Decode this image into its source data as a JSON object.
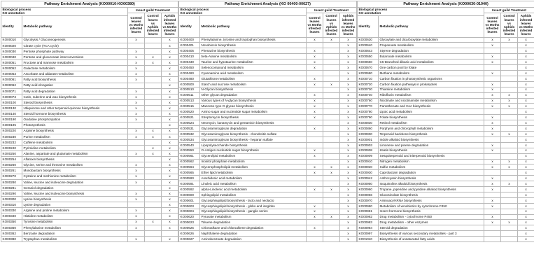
{
  "panels": [
    {
      "title": "Pathway Enrichment Analysis (KO00010-KO00380)",
      "header_bp": "Biological process",
      "header_ko": "KO annotation",
      "header_treatment": "Insect guild Treatment",
      "header_identity": "Identity",
      "header_pathway": "Metabolic pathway",
      "columns": [
        "Control leaves vs Moths infested leaves",
        "Control leaves vs Aphids infested leaves",
        "Aphids infested leaves vs Moths infested leaves"
      ],
      "rows": [
        {
          "id": "KO00010",
          "name": "Glycolysis / Gluconeogenesis",
          "c1": "x",
          "c2": "",
          "c3": "x"
        },
        {
          "id": "KO00020",
          "name": "Citrate cycle (TCA cycle)",
          "c1": "",
          "c2": "",
          "c3": "x"
        },
        {
          "id": "KO00030",
          "name": "Pentose phosphate pathway",
          "c1": "x",
          "c2": "",
          "c3": "x"
        },
        {
          "id": "KO00040",
          "name": "Pentose and glucuronate interconversions",
          "c1": "x",
          "c2": "x",
          "c3": "x"
        },
        {
          "id": "KO00051",
          "name": "Fructose and mannose metabolism",
          "c1": "x",
          "c2": "x",
          "c3": "x"
        },
        {
          "id": "KO00052",
          "name": "Galactose metabolism",
          "c1": "x",
          "c2": "",
          "c3": "x"
        },
        {
          "id": "KO00053",
          "name": "Ascorbate and aldarate metabolism",
          "c1": "x",
          "c2": "",
          "c3": "x"
        },
        {
          "id": "KO00061",
          "name": "Fatty acid biosynthesis",
          "c1": "x",
          "c2": "",
          "c3": "x"
        },
        {
          "id": "KO00062",
          "name": "Fatty acid elongation",
          "c1": "",
          "c2": "",
          "c3": "x"
        },
        {
          "id": "KO00071",
          "name": "Fatty acid degradation",
          "c1": "x",
          "c2": "",
          "c3": "x"
        },
        {
          "id": "KO00073",
          "name": "Cutin, suberine and wax biosynthesis",
          "c1": "x",
          "c2": "",
          "c3": "x"
        },
        {
          "id": "KO00100",
          "name": "Steroid biosynthesis",
          "c1": "x",
          "c2": "",
          "c3": "x"
        },
        {
          "id": "KO00130",
          "name": "Ubiquinone and other terpenoid-quinone biosynthesis",
          "c1": "x",
          "c2": "",
          "c3": "x"
        },
        {
          "id": "KO00140",
          "name": "Steroid hormone biosynthesis",
          "c1": "x",
          "c2": "",
          "c3": "x"
        },
        {
          "id": "KO00190",
          "name": "Oxidative phosphorylation",
          "c1": "x",
          "c2": "",
          "c3": "x"
        },
        {
          "id": "KO00195",
          "name": "Photosynthesis",
          "c1": "",
          "c2": "",
          "c3": "x"
        },
        {
          "id": "KO00220",
          "name": "Arginine biosynthesis",
          "c1": "x",
          "c2": "x",
          "c3": "x"
        },
        {
          "id": "KO00230",
          "name": "Purine metabolism",
          "c1": "x",
          "c2": "x",
          "c3": "x"
        },
        {
          "id": "KO00232",
          "name": "Caffeine metabolism",
          "c1": "",
          "c2": "",
          "c3": "x"
        },
        {
          "id": "KO00240",
          "name": "Pyrimidine metabolism",
          "c1": "",
          "c2": "x",
          "c3": "x"
        },
        {
          "id": "KO00250",
          "name": "Alanine, aspartate and glutamate metabolism",
          "c1": "x",
          "c2": "x",
          "c3": "x"
        },
        {
          "id": "KO00254",
          "name": "Aflatoxin biosynthesis",
          "c1": "",
          "c2": "",
          "c3": "x"
        },
        {
          "id": "KO00260",
          "name": "Glycine, serine and threonine metabolism",
          "c1": "x",
          "c2": "",
          "c3": "x"
        },
        {
          "id": "KO00261",
          "name": "Monobactam biosynthesis",
          "c1": "x",
          "c2": "",
          "c3": "x"
        },
        {
          "id": "KO00270",
          "name": "Cysteine and methionine metabolism",
          "c1": "x",
          "c2": "",
          "c3": "x"
        },
        {
          "id": "KO00280",
          "name": "Valine, leucine and isoleucine degradation",
          "c1": "x",
          "c2": "",
          "c3": "x"
        },
        {
          "id": "KO00281",
          "name": "Geraniol degradation",
          "c1": "",
          "c2": "",
          "c3": "x"
        },
        {
          "id": "KO00290",
          "name": "Valine, leucine and isoleucine biosynthesis",
          "c1": "x",
          "c2": "",
          "c3": "x"
        },
        {
          "id": "KO00300",
          "name": "Lysine biosynthesis",
          "c1": "x",
          "c2": "",
          "c3": "x"
        },
        {
          "id": "KO00310",
          "name": "Lysine degradation",
          "c1": "",
          "c2": "",
          "c3": "x"
        },
        {
          "id": "KO00330",
          "name": "Arginine and proline metabolism",
          "c1": "x",
          "c2": "",
          "c3": "x"
        },
        {
          "id": "KO00340",
          "name": "Histidine metabolism",
          "c1": "x",
          "c2": "",
          "c3": "x"
        },
        {
          "id": "KO00350",
          "name": "Tyrosine metabolism",
          "c1": "x",
          "c2": "x",
          "c3": "x"
        },
        {
          "id": "KO00360",
          "name": "Phenylalanine metabolism",
          "c1": "x",
          "c2": "",
          "c3": "x"
        },
        {
          "id": "KO00362",
          "name": "Benzoate degradation",
          "c1": "",
          "c2": "",
          "c3": ""
        },
        {
          "id": "KO00380",
          "name": "Tryptophan metabolism",
          "c1": "x",
          "c2": "",
          "c3": "x"
        }
      ]
    },
    {
      "title": "Pathway Enrichment Analysis (KO 00400-00627)",
      "header_bp": "Biological process",
      "header_ko": "KO annotation",
      "header_treatment": "Insect guild Treatment",
      "header_identity": "Identity",
      "header_pathway": "Metabolic pathway",
      "columns": [
        "Control leaves vs Moths infested leaves",
        "Control leaves vs Aphids infested leaves",
        "Aphids infested leaves vs Moths infested leaves"
      ],
      "rows": [
        {
          "id": "KO00400",
          "name": "Phenylalanine, tyrosine and tryptophan biosynthesis",
          "c1": "x",
          "c2": "x",
          "c3": "x"
        },
        {
          "id": "KO00401",
          "name": "Novobiocin biosynthesis",
          "c1": "",
          "c2": "",
          "c3": "x"
        },
        {
          "id": "KO00405",
          "name": "Phenazine biosynthesis",
          "c1": "x",
          "c2": "",
          "c3": "x"
        },
        {
          "id": "KO00410",
          "name": "beta-Alanine metabolism",
          "c1": "x",
          "c2": "",
          "c3": "x"
        },
        {
          "id": "KO00430",
          "name": "Taurine and hypotaurine metabolism",
          "c1": "x",
          "c2": "",
          "c3": "x"
        },
        {
          "id": "KO00450",
          "name": "Selenocompound metabolism",
          "c1": "x",
          "c2": "",
          "c3": "x"
        },
        {
          "id": "KO00460",
          "name": "Cyanoamino acid metabolism",
          "c1": "",
          "c2": "",
          "c3": "x"
        },
        {
          "id": "KO00480",
          "name": "Glutathione metabolism",
          "c1": "x",
          "c2": "",
          "c3": "x"
        },
        {
          "id": "KO00500",
          "name": "Starch and sucrose metabolism",
          "c1": "x",
          "c2": "x",
          "c3": "x"
        },
        {
          "id": "KO00510",
          "name": "N-Glycan biosynthesis",
          "c1": "",
          "c2": "",
          "c3": "x"
        },
        {
          "id": "KO00511",
          "name": "Other glycan degradation",
          "c1": "x",
          "c2": "",
          "c3": "x"
        },
        {
          "id": "KO00513",
          "name": "Various types of N-glycan biosynthesis",
          "c1": "x",
          "c2": "",
          "c3": "x"
        },
        {
          "id": "KO00515",
          "name": "Mannose type O-glycan biosynthesis",
          "c1": "x",
          "c2": "",
          "c3": "x"
        },
        {
          "id": "KO00520",
          "name": "Amino sugar and nucleotide sugar metabolism",
          "c1": "x",
          "c2": "",
          "c3": "x"
        },
        {
          "id": "KO00521",
          "name": "Streptomycin biosynthesis",
          "c1": "x",
          "c2": "",
          "c3": "x"
        },
        {
          "id": "KO00524",
          "name": "Neomycin, kanamycin and gentamicin biosynthesis",
          "c1": "",
          "c2": "",
          "c3": "x"
        },
        {
          "id": "KO00531",
          "name": "Glycosaminoglycan degradation",
          "c1": "x",
          "c2": "",
          "c3": "x"
        },
        {
          "id": "KO00532",
          "name": "Glycosaminoglycan biosynthesis - chondroitin sulfate",
          "c1": "",
          "c2": "",
          "c3": "x"
        },
        {
          "id": "KO00534",
          "name": "Glycosaminoglycan biosynthesis - heparan sulfate",
          "c1": "",
          "c2": "",
          "c3": "x"
        },
        {
          "id": "KO00540",
          "name": "Lipopolysaccharide biosynthesis",
          "c1": "",
          "c2": "",
          "c3": "x"
        },
        {
          "id": "KO00550",
          "name": "O-Antigen nucleotide sugar biosynthesis",
          "c1": "x",
          "c2": "",
          "c3": "x"
        },
        {
          "id": "KO00561",
          "name": "Glycerolipid metabolism",
          "c1": "x",
          "c2": "",
          "c3": "x"
        },
        {
          "id": "KO00562",
          "name": "Inositol phosphate metabolism",
          "c1": "",
          "c2": "",
          "c3": "x"
        },
        {
          "id": "KO00564",
          "name": "Glycerophospholipid metabolism",
          "c1": "x",
          "c2": "x",
          "c3": "x"
        },
        {
          "id": "KO00565",
          "name": "Ether lipid metabolism",
          "c1": "x",
          "c2": "x",
          "c3": "x"
        },
        {
          "id": "KO00590",
          "name": "Arachidonic acid metabolism",
          "c1": "",
          "c2": "",
          "c3": "x"
        },
        {
          "id": "KO00591",
          "name": "Linoleic acid metabolism",
          "c1": "",
          "c2": "",
          "c3": "x"
        },
        {
          "id": "KO00592",
          "name": "alpha-Linolenic acid metabolism",
          "c1": "x",
          "c2": "x",
          "c3": "x"
        },
        {
          "id": "KO00600",
          "name": "Sphingolipid metabolism",
          "c1": "",
          "c2": "",
          "c3": "x"
        },
        {
          "id": "KO00601",
          "name": "Glycosphingolipid biosynthesis - lacto and neolacto",
          "c1": "",
          "c2": "",
          "c3": "x"
        },
        {
          "id": "KO00603",
          "name": "Glycosphingolipid biosynthesis - globo and isoglobo",
          "c1": "x",
          "c2": "",
          "c3": "x"
        },
        {
          "id": "KO00604",
          "name": "Glycosphingolipid biosynthesis - ganglio series",
          "c1": "x",
          "c2": "",
          "c3": "x"
        },
        {
          "id": "KO00620",
          "name": "Pyruvate metabolism",
          "c1": "x",
          "c2": "x",
          "c3": "x"
        },
        {
          "id": "KO00623",
          "name": "Toluene degradation",
          "c1": "",
          "c2": "",
          "c3": "x"
        },
        {
          "id": "KO00625",
          "name": "Chloroalkane and chloroalkene degradation",
          "c1": "x",
          "c2": "",
          "c3": "x"
        },
        {
          "id": "KO00626",
          "name": "Naphthalene degradation",
          "c1": "",
          "c2": "",
          "c3": "x"
        },
        {
          "id": "KO00627",
          "name": "Aminobenzoate degradation",
          "c1": "",
          "c2": "",
          "c3": "x"
        }
      ]
    },
    {
      "title": "Pathway Enrichment Analysis (KO00630-01040)",
      "header_bp": "Biological process",
      "header_ko": "KO annotation",
      "header_treatment": "Insect guild Treatment",
      "header_identity": "Identity",
      "header_pathway": "Metabolic pathway",
      "columns": [
        "Control leaves vs Moths infested leaves",
        "Control leaves vs Aphids infested leaves",
        "Aphids infested leaves vs Moths infested leaves"
      ],
      "rows": [
        {
          "id": "KO00630",
          "name": "Glyoxylate and dicarboxylate metabolism",
          "c1": "x",
          "c2": "x",
          "c3": "x"
        },
        {
          "id": "KO00640",
          "name": "Propanoate metabolism",
          "c1": "x",
          "c2": "",
          "c3": "x"
        },
        {
          "id": "KO00643",
          "name": "Styrene degradation",
          "c1": "",
          "c2": "",
          "c3": "x"
        },
        {
          "id": "KO00650",
          "name": "Butanoate metabolism",
          "c1": "x",
          "c2": "",
          "c3": "x"
        },
        {
          "id": "KO00660",
          "name": "C5-Branched dibasic acid metabolism",
          "c1": "x",
          "c2": "",
          "c3": "x"
        },
        {
          "id": "KO00670",
          "name": "One carbon pool by folate",
          "c1": "",
          "c2": "",
          "c3": "x"
        },
        {
          "id": "KO00680",
          "name": "Methane metabolism",
          "c1": "x",
          "c2": "",
          "c3": "x"
        },
        {
          "id": "KO00710",
          "name": "Carbon fixation in photosynthetic organisms",
          "c1": "",
          "c2": "",
          "c3": "x"
        },
        {
          "id": "KO00720",
          "name": "Carbon fixation pathways in prokaryotes",
          "c1": "x",
          "c2": "",
          "c3": "x"
        },
        {
          "id": "KO00730",
          "name": "Thiamine metabolism",
          "c1": "x",
          "c2": "",
          "c3": "x"
        },
        {
          "id": "KO00740",
          "name": "Riboflavin metabolism",
          "c1": "x",
          "c2": "x",
          "c3": "x"
        },
        {
          "id": "KO00760",
          "name": "Nicotinate and nicotinamide metabolism",
          "c1": "x",
          "c2": "x",
          "c3": "x"
        },
        {
          "id": "KO00770",
          "name": "Pantothenate and CoA biosynthesis",
          "c1": "x",
          "c2": "x",
          "c3": "x"
        },
        {
          "id": "KO00780",
          "name": "Lipoic acid metabolism",
          "c1": "",
          "c2": "",
          "c3": "x"
        },
        {
          "id": "KO00790",
          "name": "Folate biosynthesis",
          "c1": "x",
          "c2": "",
          "c3": "x"
        },
        {
          "id": "KO00830",
          "name": "Retinol metabolism",
          "c1": "x",
          "c2": "",
          "c3": "x"
        },
        {
          "id": "KO00860",
          "name": "Porphyrin and chlorophyll metabolism",
          "c1": "x",
          "c2": "",
          "c3": "x"
        },
        {
          "id": "KO00900",
          "name": "Terpenoid backbone biosynthesis",
          "c1": "x",
          "c2": "x",
          "c3": "x"
        },
        {
          "id": "KO00901",
          "name": "Indole alkaloid biosynthesis",
          "c1": "",
          "c2": "",
          "c3": "x"
        },
        {
          "id": "KO00903",
          "name": "Limonene and pinene degradation",
          "c1": "x",
          "c2": "",
          "c3": "x"
        },
        {
          "id": "KO00908",
          "name": "Zeatin biosynthesis",
          "c1": "x",
          "c2": "",
          "c3": "x"
        },
        {
          "id": "KO00909",
          "name": "Sesquiterpenoid and triterpenoid biosynthesis",
          "c1": "",
          "c2": "",
          "c3": "x"
        },
        {
          "id": "KO00910",
          "name": "Nitrogen metabolism",
          "c1": "x",
          "c2": "x",
          "c3": "x"
        },
        {
          "id": "KO00920",
          "name": "Sulfur metabolism",
          "c1": "x",
          "c2": "x",
          "c3": "x"
        },
        {
          "id": "KO00930",
          "name": "Caprolactam degradation",
          "c1": "",
          "c2": "",
          "c3": "x"
        },
        {
          "id": "KO00942",
          "name": "Anthocyanin biosynthesis",
          "c1": "x",
          "c2": "",
          "c3": "x"
        },
        {
          "id": "KO00950",
          "name": "Isoquinoline alkaloid biosynthesis",
          "c1": "x",
          "c2": "x",
          "c3": "x"
        },
        {
          "id": "KO00960",
          "name": "Tropane, piperidine and pyridine alkaloid biosynthesis",
          "c1": "x",
          "c2": "",
          "c3": "x"
        },
        {
          "id": "KO00966",
          "name": "Glucosinolate biosynthesis",
          "c1": "",
          "c2": "",
          "c3": "x"
        },
        {
          "id": "KO00970",
          "name": "Aminoacyl-tRNA biosynthesis",
          "c1": "x",
          "c2": "",
          "c3": "x"
        },
        {
          "id": "KO00980",
          "name": "Metabolism of xenobiotics by cytochrome P450",
          "c1": "x",
          "c2": "",
          "c3": "x"
        },
        {
          "id": "KO00981",
          "name": "Insect hormone biosynthesis",
          "c1": "",
          "c2": "",
          "c3": "x"
        },
        {
          "id": "KO00982",
          "name": "Drug metabolism - cytochrome P450",
          "c1": "x",
          "c2": "",
          "c3": "x"
        },
        {
          "id": "KO00983",
          "name": "Drug metabolism - other enzymes",
          "c1": "x",
          "c2": "x",
          "c3": "x"
        },
        {
          "id": "KO00984",
          "name": "Steroid degradation",
          "c1": "",
          "c2": "",
          "c3": "x"
        },
        {
          "id": "KO00997",
          "name": "Biosynthesis of various secondary metabolites - part 3",
          "c1": "",
          "c2": "",
          "c3": "x"
        },
        {
          "id": "KO01040",
          "name": "Biosynthesis of unsaturated fatty acids",
          "c1": "",
          "c2": "",
          "c3": "x"
        }
      ]
    }
  ]
}
